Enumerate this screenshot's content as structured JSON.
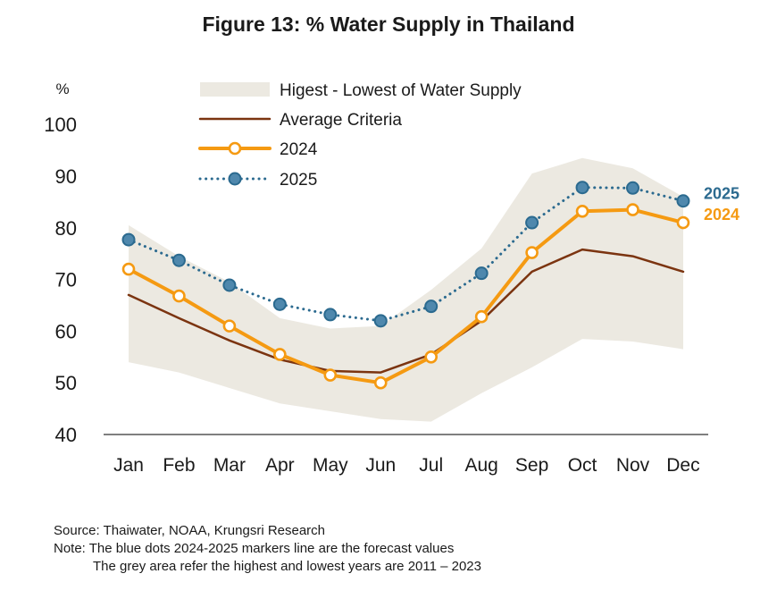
{
  "title": "Figure 13: % Water Supply in Thailand",
  "chart_data": {
    "type": "line",
    "ylabel": "%",
    "ylim": [
      40,
      100
    ],
    "yticks": [
      40,
      50,
      60,
      70,
      80,
      90,
      100
    ],
    "categories": [
      "Jan",
      "Feb",
      "Mar",
      "Apr",
      "May",
      "Jun",
      "Jul",
      "Aug",
      "Sep",
      "Oct",
      "Nov",
      "Dec"
    ],
    "band": {
      "name": "Higest - Lowest of Water Supply",
      "color": "#ece9e1",
      "upper": [
        80.5,
        74.5,
        69.5,
        62.5,
        60.5,
        61,
        68,
        76,
        90.5,
        93.5,
        91.5,
        86
      ],
      "lower": [
        54,
        52,
        49,
        46,
        44.5,
        43,
        42.5,
        48,
        53,
        58.5,
        58,
        56.5
      ]
    },
    "series": [
      {
        "name": "Average Criteria",
        "color": "#7b3410",
        "style": "solid",
        "markers": false,
        "values": [
          67,
          62.5,
          58.2,
          54.5,
          52.3,
          52,
          55.5,
          62,
          71.5,
          75.8,
          74.5,
          71.5
        ]
      },
      {
        "name": "2024",
        "color": "#f59a12",
        "style": "solid",
        "markers": true,
        "end_label": "2024",
        "values": [
          72,
          66.8,
          61,
          55.5,
          51.5,
          50,
          55,
          62.8,
          75.2,
          83.2,
          83.5,
          81
        ]
      },
      {
        "name": "2025",
        "color": "#2b6a8f",
        "style": "dotted",
        "markers": true,
        "end_label": "2025",
        "values": [
          77.7,
          73.7,
          68.9,
          65.2,
          63.2,
          62,
          64.8,
          71.2,
          81,
          87.8,
          87.7,
          85.2
        ]
      }
    ],
    "legend_position": "top-left",
    "grid": false
  },
  "footnotes": {
    "source": "Source: Thaiwater, NOAA, Krungsri Research",
    "note_line1": "Note: The blue dots 2024-2025 markers line are the forecast values",
    "note_line2": "The grey area refer the highest and lowest years are 2011 – 2023"
  }
}
